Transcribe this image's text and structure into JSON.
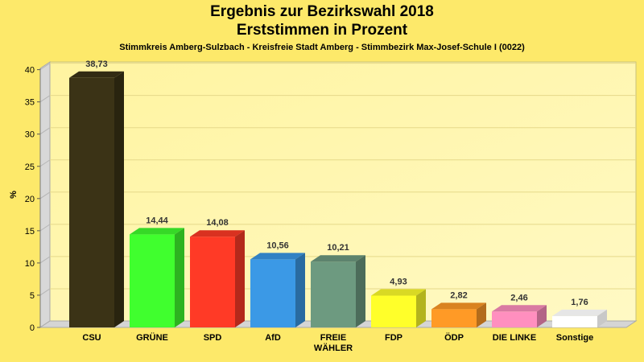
{
  "chart_data": {
    "type": "bar",
    "title": "Ergebnis zur Bezirkswahl 2018",
    "subtitle": "Erststimmen in Prozent",
    "caption": "Stimmkreis Amberg-Sulzbach - Kreisfreie Stadt Amberg - Stimmbezirk Max-Josef-Schule I (0022)",
    "ylabel": "%",
    "xlabel": "",
    "ylim": [
      0,
      40
    ],
    "yticks": [
      "0",
      "5",
      "10",
      "15",
      "20",
      "25",
      "30",
      "35",
      "40"
    ],
    "grid": true,
    "categories": [
      "CSU",
      "GRÜNE",
      "SPD",
      "AfD",
      "FREIE WÄHLER",
      "FDP",
      "ÖDP",
      "DIE LINKE",
      "Sonstige"
    ],
    "category_lines": [
      [
        "CSU"
      ],
      [
        "GRÜNE"
      ],
      [
        "SPD"
      ],
      [
        "AfD"
      ],
      [
        "FREIE",
        "WÄHLER"
      ],
      [
        "FDP"
      ],
      [
        "ÖDP"
      ],
      [
        "DIE LINKE"
      ],
      [
        "Sonstige"
      ]
    ],
    "values": [
      38.73,
      14.44,
      14.08,
      10.56,
      10.21,
      4.93,
      2.82,
      2.46,
      1.76
    ],
    "value_labels": [
      "38,73",
      "14,44",
      "14,08",
      "10,56",
      "10,21",
      "4,93",
      "2,82",
      "2,46",
      "1,76"
    ],
    "colors": [
      "#3b3316",
      "#40ff2e",
      "#ff3a26",
      "#3b99e6",
      "#6d9a80",
      "#ffff2a",
      "#ff9a26",
      "#ff8fbf",
      "#ffffff"
    ]
  }
}
